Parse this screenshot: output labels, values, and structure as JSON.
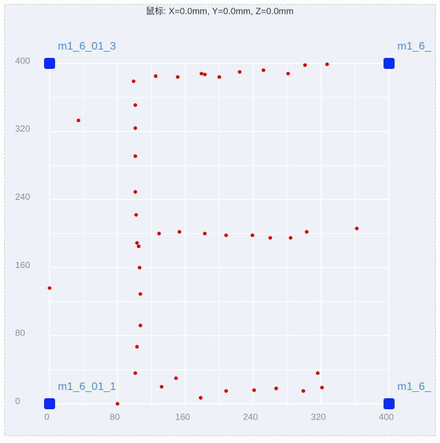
{
  "chart_data": {
    "type": "scatter",
    "title": "鼠标: X=0.0mm, Y=0.0mm, Z=0.0mm",
    "xlim": [
      0,
      400
    ],
    "ylim": [
      0,
      400
    ],
    "xticks": [
      0,
      80,
      160,
      240,
      320,
      400
    ],
    "yticks": [
      0,
      80,
      160,
      240,
      320,
      400
    ],
    "grid": true,
    "series": [
      {
        "color": "#e00000",
        "x": [
          99,
          125,
          151,
          179,
          183,
          200,
          224,
          252,
          281,
          301,
          327,
          34,
          101,
          101,
          101,
          101,
          102,
          103,
          105,
          106,
          107,
          107,
          103,
          101,
          0,
          129,
          153,
          183,
          208,
          239,
          260,
          284,
          303,
          362,
          80,
          132,
          149,
          178,
          208,
          241,
          267,
          299,
          316,
          321
        ],
        "y": [
          379,
          385,
          384,
          388,
          387,
          384,
          390,
          392,
          388,
          398,
          399,
          333,
          351,
          324,
          291,
          249,
          222,
          189,
          185,
          160,
          129,
          92,
          67,
          36,
          136,
          200,
          202,
          200,
          198,
          198,
          195,
          195,
          202,
          206,
          0,
          20,
          30,
          7,
          15,
          16,
          18,
          15,
          36,
          19
        ]
      }
    ],
    "anchors": [
      {
        "label": "m1_6_01_3",
        "x": 0,
        "y": 400,
        "color": "#0a2cff"
      },
      {
        "label": "m1_6_",
        "x": 400,
        "y": 400,
        "color": "#0a2cff"
      },
      {
        "label": "m1_6_01_1",
        "x": 0,
        "y": 0,
        "color": "#0a2cff"
      },
      {
        "label": "m1_6_",
        "x": 400,
        "y": 0,
        "color": "#0a2cff"
      }
    ]
  }
}
